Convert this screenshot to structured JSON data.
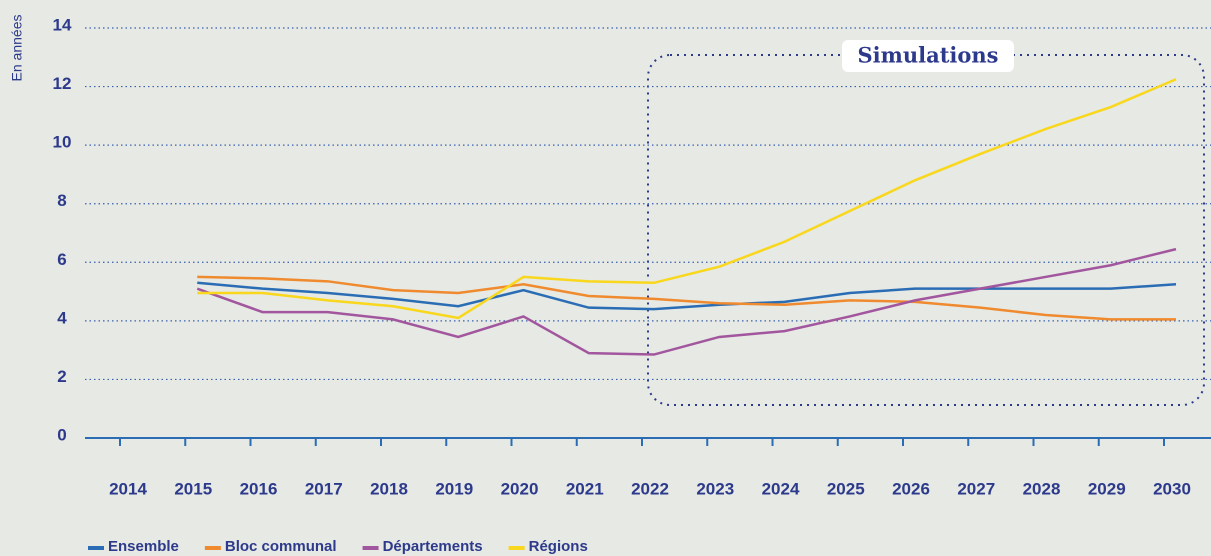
{
  "chart_data": {
    "type": "line",
    "y_label": "En années",
    "annotation": "Simulations",
    "categories": [
      "2014",
      "2015",
      "2016",
      "2017",
      "2018",
      "2019",
      "2020",
      "2021",
      "2022",
      "2023",
      "2024",
      "2025",
      "2026",
      "2027",
      "2028",
      "2029",
      "2030"
    ],
    "series": [
      {
        "name": "Ensemble",
        "color": "#2a6db5",
        "values": [
          null,
          5.3,
          5.1,
          4.95,
          4.75,
          4.5,
          5.05,
          4.45,
          4.4,
          4.55,
          4.65,
          4.95,
          5.1,
          5.1,
          5.1,
          5.1,
          5.25
        ]
      },
      {
        "name": "Bloc communal",
        "color": "#f08a2e",
        "values": [
          null,
          5.5,
          5.45,
          5.35,
          5.05,
          4.95,
          5.25,
          4.85,
          4.75,
          4.6,
          4.55,
          4.7,
          4.65,
          4.45,
          4.2,
          4.05,
          4.05
        ]
      },
      {
        "name": "Départements",
        "color": "#a2569e",
        "values": [
          null,
          5.1,
          4.3,
          4.3,
          4.05,
          3.45,
          4.15,
          2.9,
          2.85,
          3.45,
          3.65,
          4.15,
          4.7,
          5.1,
          5.5,
          5.9,
          6.45
        ]
      },
      {
        "name": "Régions",
        "color": "#f9d71c",
        "values": [
          null,
          4.95,
          4.95,
          4.7,
          4.5,
          4.1,
          5.5,
          5.35,
          5.3,
          5.85,
          6.7,
          7.75,
          8.8,
          9.7,
          10.55,
          11.3,
          12.25
        ]
      }
    ],
    "ylim": [
      0,
      14
    ],
    "yticks": [
      0,
      2,
      4,
      6,
      8,
      10,
      12,
      14
    ],
    "grid": true
  }
}
